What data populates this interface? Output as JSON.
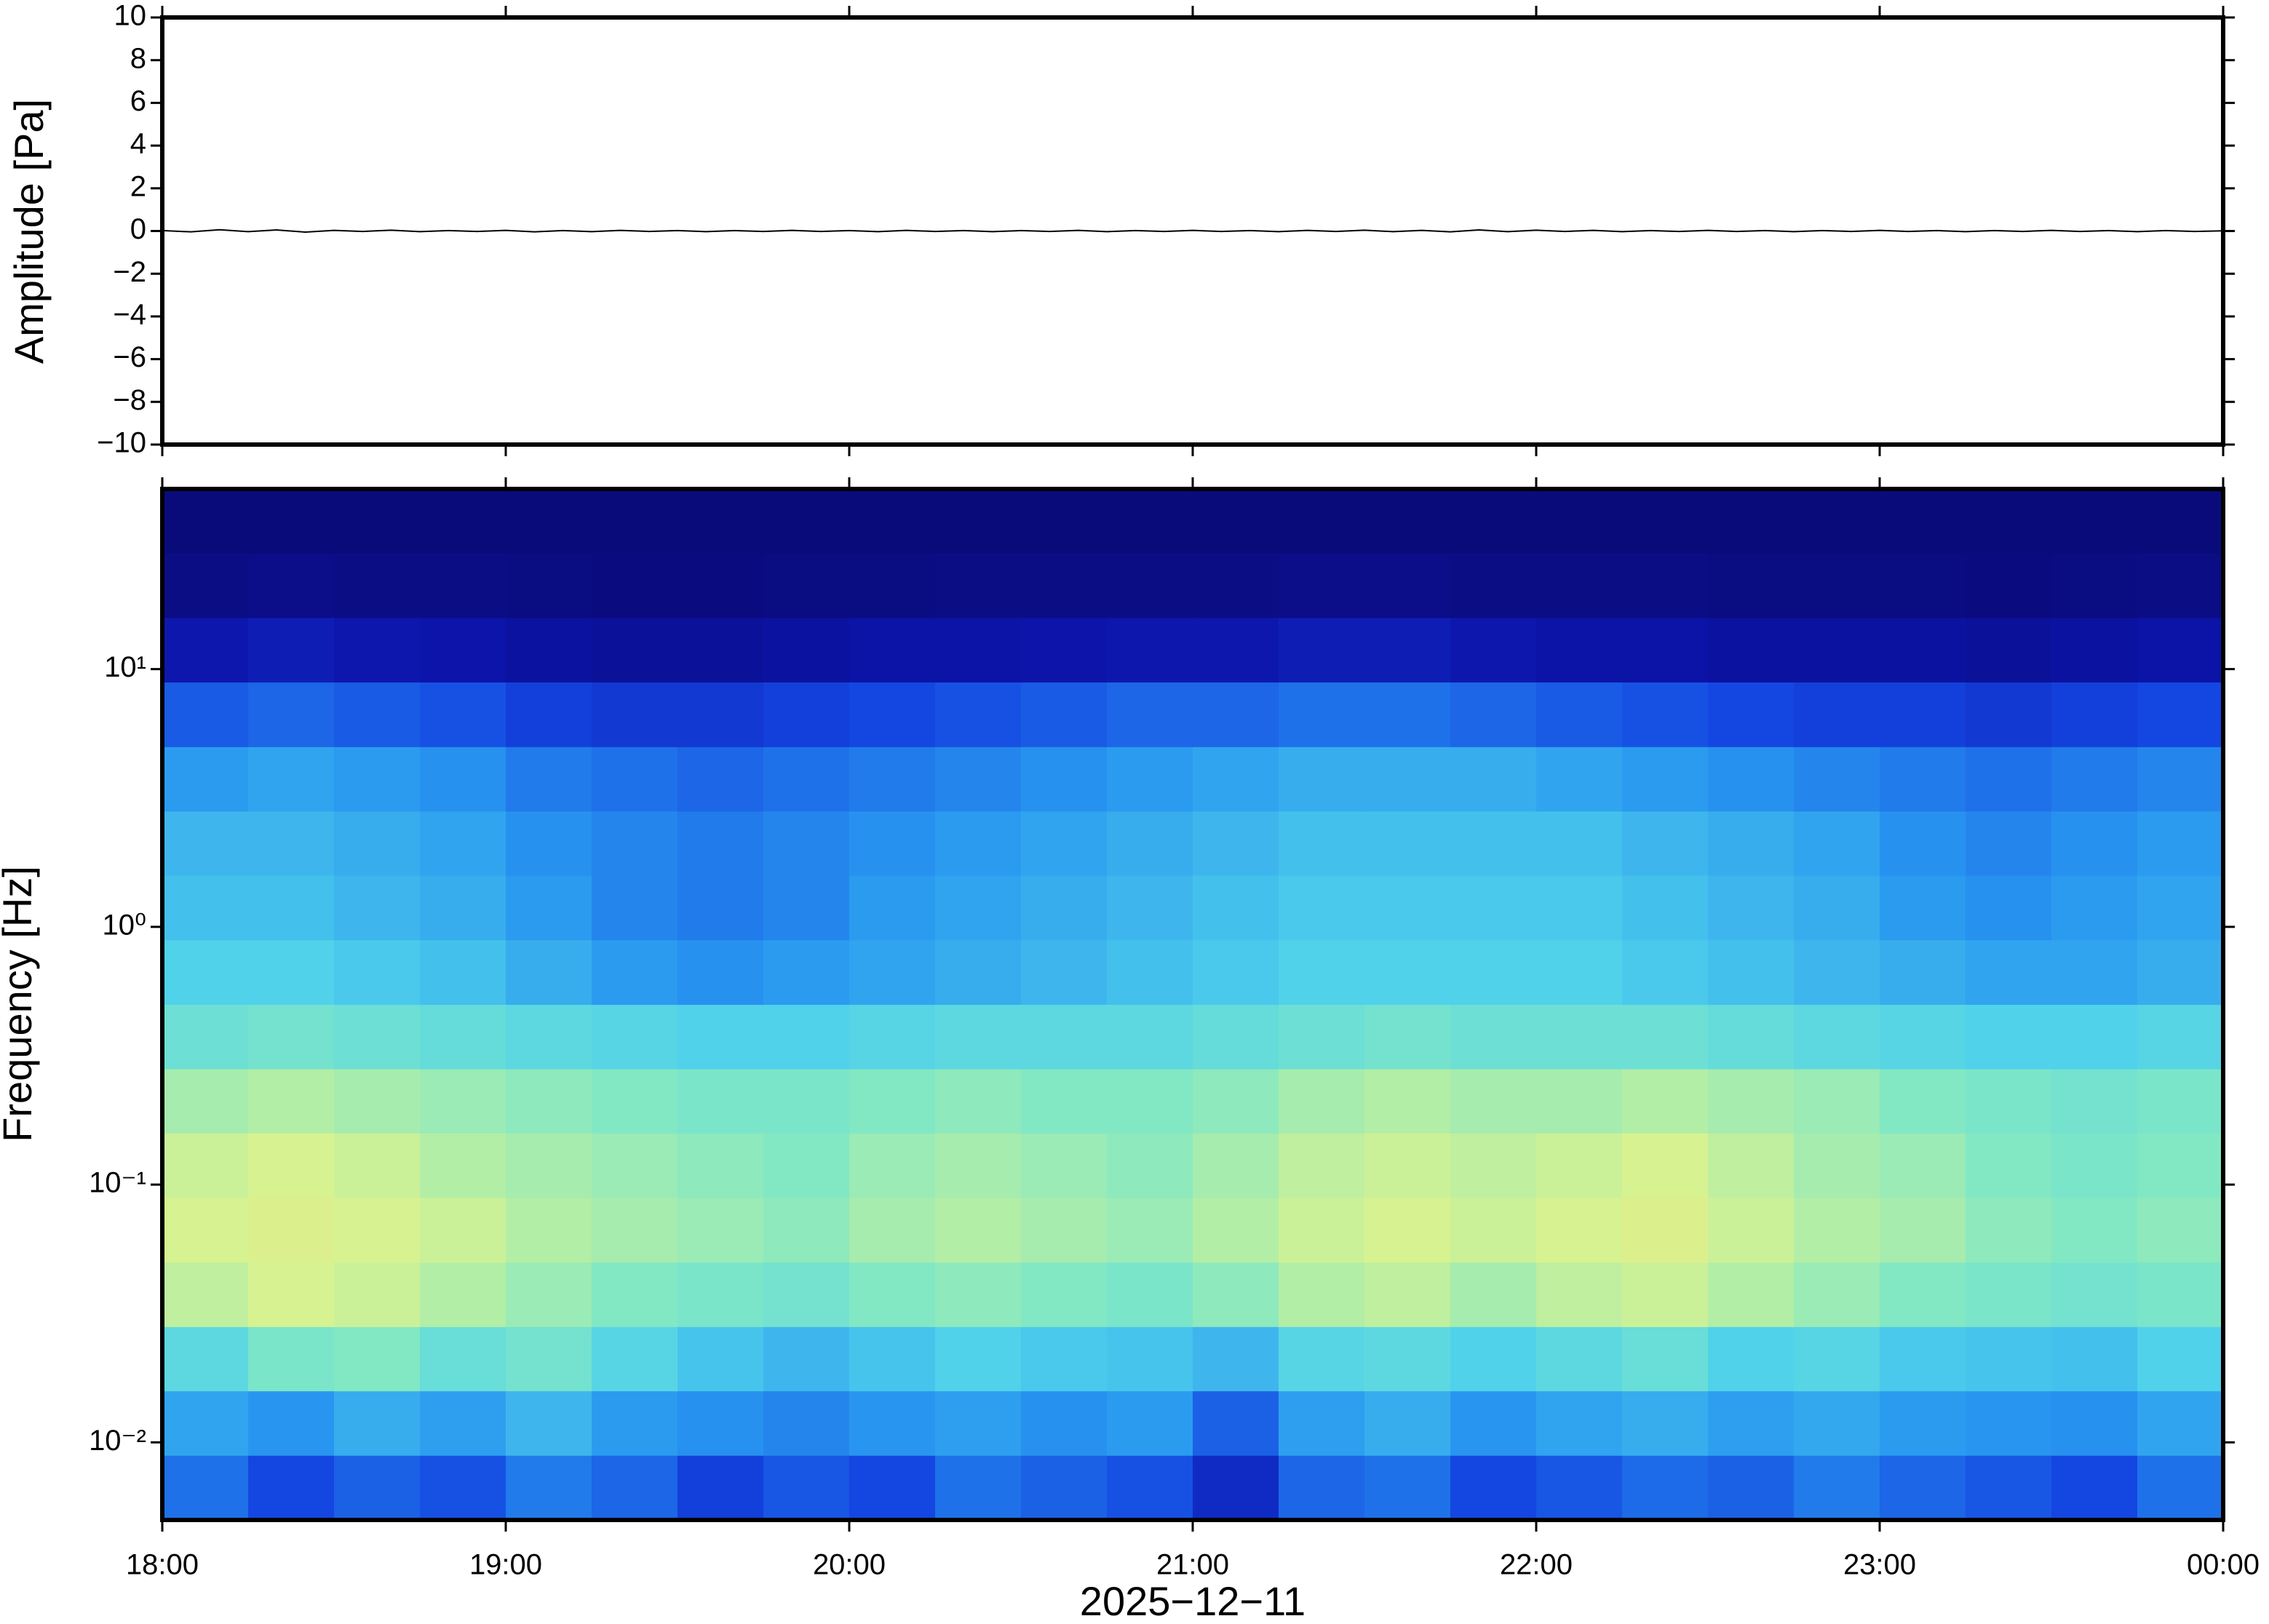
{
  "chart_data": [
    {
      "type": "line",
      "ylabel": "Amplitude [Pa]",
      "color": "#000000",
      "x": [
        0,
        5,
        10,
        15,
        20,
        25,
        30,
        35,
        40,
        45,
        50,
        55,
        60,
        65,
        70,
        75,
        80,
        85,
        90,
        95,
        100,
        105,
        110,
        115,
        120,
        125,
        130,
        135,
        140,
        145,
        150,
        155,
        160,
        165,
        170,
        175,
        180,
        185,
        190,
        195,
        200,
        205,
        210,
        215,
        220,
        225,
        230,
        235,
        240,
        245,
        250,
        255,
        260,
        265,
        270,
        275,
        280,
        285,
        290,
        295,
        300,
        305,
        310,
        315,
        320,
        325,
        330,
        335,
        340,
        345,
        350,
        355,
        360
      ],
      "values": [
        0.02,
        -0.04,
        0.06,
        -0.03,
        0.05,
        -0.05,
        0.03,
        -0.02,
        0.04,
        -0.03,
        0.02,
        -0.02,
        0.03,
        -0.04,
        0.02,
        -0.03,
        0.03,
        -0.02,
        0.02,
        -0.03,
        0.02,
        -0.02,
        0.03,
        -0.02,
        0.02,
        -0.03,
        0.03,
        -0.02,
        0.02,
        -0.03,
        0.02,
        -0.02,
        0.03,
        -0.03,
        0.02,
        -0.02,
        0.03,
        -0.02,
        0.02,
        -0.03,
        0.03,
        -0.02,
        0.04,
        -0.03,
        0.03,
        -0.04,
        0.05,
        -0.03,
        0.04,
        -0.02,
        0.03,
        -0.03,
        0.02,
        -0.02,
        0.03,
        -0.02,
        0.02,
        -0.03,
        0.02,
        -0.02,
        0.03,
        -0.02,
        0.02,
        -0.03,
        0.02,
        -0.02,
        0.03,
        -0.02,
        0.02,
        -0.03,
        0.02,
        -0.02,
        0.01
      ],
      "xlim": [
        0,
        360
      ],
      "xticks": [
        0,
        60,
        120,
        180,
        240,
        300,
        360
      ],
      "ylim": [
        -10,
        10
      ],
      "yticks": [
        {
          "value": -10,
          "label": "−10"
        },
        {
          "value": -8,
          "label": "−8"
        },
        {
          "value": -6,
          "label": "−6"
        },
        {
          "value": -4,
          "label": "−4"
        },
        {
          "value": -2,
          "label": "−2"
        },
        0,
        2,
        4,
        6,
        8,
        10
      ]
    },
    {
      "type": "heatmap",
      "ylabel": "Frequency [Hz]",
      "xlabel": "2025−12−11",
      "log_y": true,
      "x": [
        7.5,
        22.5,
        37.5,
        52.5,
        67.5,
        82.5,
        97.5,
        112.5,
        127.5,
        142.5,
        157.5,
        172.5,
        187.5,
        202.5,
        217.5,
        232.5,
        247.5,
        262.5,
        277.5,
        292.5,
        307.5,
        322.5,
        337.5,
        352.5
      ],
      "y": [
        0.00667,
        0.0119,
        0.0211,
        0.0375,
        0.0667,
        0.119,
        0.211,
        0.375,
        0.667,
        1.19,
        2.11,
        3.75,
        6.67,
        11.9,
        21.1,
        37.5
      ],
      "z": [
        [
          0.38,
          0.3,
          0.35,
          0.32,
          0.4,
          0.36,
          0.28,
          0.33,
          0.3,
          0.38,
          0.35,
          0.32,
          0.22,
          0.36,
          0.38,
          0.3,
          0.33,
          0.37,
          0.35,
          0.4,
          0.36,
          0.33,
          0.3,
          0.38
        ],
        [
          0.48,
          0.45,
          0.5,
          0.47,
          0.52,
          0.46,
          0.44,
          0.42,
          0.45,
          0.47,
          0.44,
          0.46,
          0.35,
          0.47,
          0.5,
          0.45,
          0.48,
          0.5,
          0.47,
          0.49,
          0.46,
          0.45,
          0.44,
          0.48
        ],
        [
          0.62,
          0.7,
          0.72,
          0.65,
          0.68,
          0.6,
          0.55,
          0.52,
          0.55,
          0.58,
          0.56,
          0.55,
          0.52,
          0.6,
          0.62,
          0.58,
          0.62,
          0.65,
          0.58,
          0.6,
          0.56,
          0.55,
          0.54,
          0.58
        ],
        [
          0.82,
          0.86,
          0.84,
          0.8,
          0.76,
          0.72,
          0.7,
          0.68,
          0.72,
          0.74,
          0.72,
          0.7,
          0.74,
          0.8,
          0.82,
          0.78,
          0.82,
          0.84,
          0.8,
          0.76,
          0.72,
          0.7,
          0.68,
          0.7
        ],
        [
          0.86,
          0.88,
          0.86,
          0.84,
          0.8,
          0.78,
          0.76,
          0.74,
          0.78,
          0.8,
          0.78,
          0.76,
          0.8,
          0.84,
          0.86,
          0.84,
          0.86,
          0.88,
          0.84,
          0.8,
          0.78,
          0.74,
          0.72,
          0.74
        ],
        [
          0.84,
          0.86,
          0.84,
          0.8,
          0.78,
          0.76,
          0.74,
          0.72,
          0.76,
          0.78,
          0.76,
          0.74,
          0.78,
          0.82,
          0.84,
          0.82,
          0.84,
          0.86,
          0.82,
          0.78,
          0.76,
          0.72,
          0.7,
          0.72
        ],
        [
          0.78,
          0.8,
          0.78,
          0.76,
          0.74,
          0.72,
          0.7,
          0.7,
          0.72,
          0.74,
          0.72,
          0.72,
          0.74,
          0.78,
          0.8,
          0.78,
          0.78,
          0.8,
          0.78,
          0.76,
          0.72,
          0.7,
          0.68,
          0.7
        ],
        [
          0.66,
          0.68,
          0.66,
          0.64,
          0.62,
          0.6,
          0.58,
          0.58,
          0.6,
          0.62,
          0.62,
          0.62,
          0.64,
          0.66,
          0.68,
          0.66,
          0.66,
          0.66,
          0.64,
          0.62,
          0.6,
          0.58,
          0.58,
          0.6
        ],
        [
          0.58,
          0.58,
          0.56,
          0.54,
          0.5,
          0.46,
          0.44,
          0.46,
          0.48,
          0.5,
          0.52,
          0.54,
          0.56,
          0.58,
          0.58,
          0.58,
          0.58,
          0.56,
          0.54,
          0.52,
          0.5,
          0.48,
          0.48,
          0.5
        ],
        [
          0.54,
          0.54,
          0.52,
          0.5,
          0.46,
          0.42,
          0.4,
          0.42,
          0.46,
          0.48,
          0.5,
          0.52,
          0.54,
          0.56,
          0.56,
          0.56,
          0.56,
          0.54,
          0.52,
          0.5,
          0.46,
          0.44,
          0.46,
          0.48
        ],
        [
          0.52,
          0.52,
          0.5,
          0.48,
          0.44,
          0.42,
          0.4,
          0.42,
          0.44,
          0.46,
          0.48,
          0.5,
          0.52,
          0.54,
          0.54,
          0.54,
          0.54,
          0.52,
          0.5,
          0.48,
          0.44,
          0.42,
          0.44,
          0.46
        ],
        [
          0.46,
          0.48,
          0.46,
          0.44,
          0.4,
          0.38,
          0.36,
          0.38,
          0.4,
          0.42,
          0.44,
          0.46,
          0.48,
          0.5,
          0.5,
          0.5,
          0.48,
          0.46,
          0.44,
          0.42,
          0.4,
          0.38,
          0.4,
          0.42
        ],
        [
          0.34,
          0.36,
          0.34,
          0.32,
          0.28,
          0.26,
          0.26,
          0.28,
          0.3,
          0.32,
          0.34,
          0.36,
          0.36,
          0.38,
          0.38,
          0.36,
          0.34,
          0.32,
          0.3,
          0.28,
          0.28,
          0.26,
          0.28,
          0.3
        ],
        [
          0.16,
          0.18,
          0.16,
          0.15,
          0.12,
          0.1,
          0.1,
          0.12,
          0.14,
          0.14,
          0.15,
          0.16,
          0.16,
          0.18,
          0.18,
          0.16,
          0.14,
          0.14,
          0.12,
          0.12,
          0.12,
          0.1,
          0.12,
          0.14
        ],
        [
          0.04,
          0.05,
          0.04,
          0.04,
          0.03,
          0.02,
          0.02,
          0.03,
          0.03,
          0.04,
          0.04,
          0.04,
          0.04,
          0.05,
          0.05,
          0.04,
          0.04,
          0.04,
          0.03,
          0.03,
          0.03,
          0.02,
          0.03,
          0.04
        ],
        [
          0.01,
          0.01,
          0.01,
          0.01,
          0.01,
          0.01,
          0.01,
          0.01,
          0.01,
          0.01,
          0.01,
          0.01,
          0.01,
          0.01,
          0.01,
          0.01,
          0.01,
          0.01,
          0.01,
          0.01,
          0.01,
          0.01,
          0.01,
          0.01
        ]
      ],
      "xlim": [
        0,
        360
      ],
      "xticks": [
        {
          "value": 0,
          "label": "18:00"
        },
        {
          "value": 60,
          "label": "19:00"
        },
        {
          "value": 120,
          "label": "20:00"
        },
        {
          "value": 180,
          "label": "21:00"
        },
        {
          "value": 240,
          "label": "22:00"
        },
        {
          "value": 300,
          "label": "23:00"
        },
        {
          "value": 360,
          "label": "00:00"
        }
      ],
      "ylim": [
        0.005,
        50
      ],
      "yticks": [
        {
          "value": 0.01,
          "label": "10⁻²"
        },
        {
          "value": 0.1,
          "label": "10⁻¹"
        },
        {
          "value": 1,
          "label": "10⁰"
        },
        {
          "value": 10,
          "label": "10¹"
        }
      ]
    }
  ]
}
